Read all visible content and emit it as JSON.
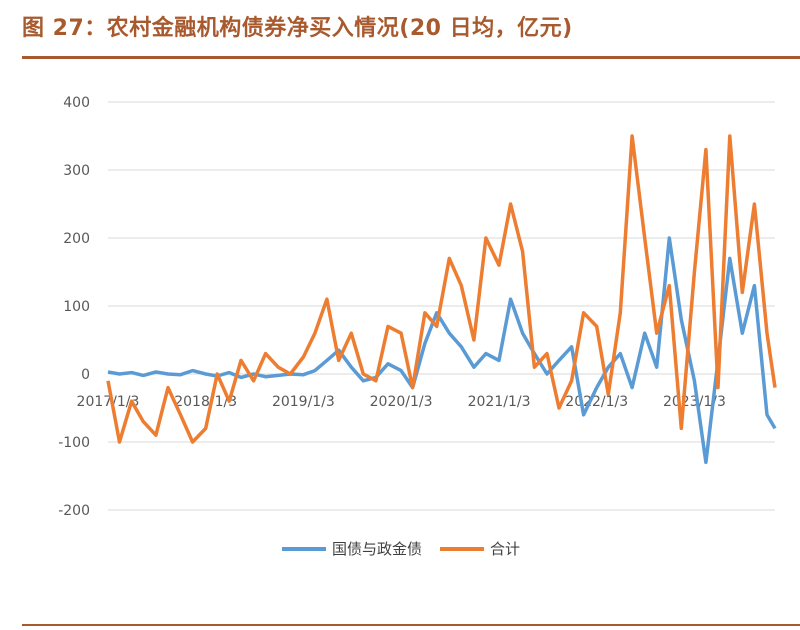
{
  "figure": {
    "title": "图 27：农村金融机构债券净买入情况(20 日均，亿元)"
  },
  "chart_data": {
    "type": "line",
    "title": "",
    "xlabel": "",
    "ylabel": "",
    "ylim": [
      -200,
      400
    ],
    "yticks": [
      "400",
      "300",
      "200",
      "100",
      "0",
      "-100",
      "-200"
    ],
    "xticks": [
      "2017/1/3",
      "2018/1/3",
      "2019/1/3",
      "2020/1/3",
      "2021/1/3",
      "2022/1/3",
      "2023/1/3"
    ],
    "xrange": [
      "2017/1/3",
      "2023/10/31"
    ],
    "grid": true,
    "legend_position": "bottom",
    "x": [
      "2017/1/3",
      "2017/2/15",
      "2017/4/1",
      "2017/5/15",
      "2017/7/1",
      "2017/8/15",
      "2017/10/1",
      "2017/11/15",
      "2018/1/3",
      "2018/2/15",
      "2018/4/1",
      "2018/5/15",
      "2018/7/1",
      "2018/8/15",
      "2018/10/1",
      "2018/11/15",
      "2019/1/3",
      "2019/2/15",
      "2019/4/1",
      "2019/5/15",
      "2019/7/1",
      "2019/8/15",
      "2019/10/1",
      "2019/11/15",
      "2020/1/3",
      "2020/2/15",
      "2020/4/1",
      "2020/5/15",
      "2020/7/1",
      "2020/8/15",
      "2020/10/1",
      "2020/11/15",
      "2021/1/3",
      "2021/2/15",
      "2021/4/1",
      "2021/5/15",
      "2021/7/1",
      "2021/8/15",
      "2021/10/1",
      "2021/11/15",
      "2022/1/3",
      "2022/2/15",
      "2022/4/1",
      "2022/5/15",
      "2022/7/1",
      "2022/8/15",
      "2022/10/1",
      "2022/11/15",
      "2023/1/3",
      "2023/2/15",
      "2023/4/1",
      "2023/5/15",
      "2023/7/1",
      "2023/8/15",
      "2023/10/1",
      "2023/10/31"
    ],
    "series": [
      {
        "name": "国债与政金债",
        "color": "#5b9bd5",
        "values": [
          3,
          0,
          2,
          -2,
          3,
          0,
          -1,
          5,
          0,
          -3,
          2,
          -5,
          0,
          -4,
          -2,
          0,
          -1,
          5,
          20,
          35,
          10,
          -10,
          -5,
          15,
          5,
          -20,
          45,
          90,
          60,
          40,
          10,
          30,
          20,
          110,
          60,
          30,
          0,
          20,
          40,
          -60,
          -20,
          10,
          30,
          -20,
          60,
          10,
          200,
          80,
          -10,
          -130,
          20,
          170,
          60,
          130,
          -60,
          -80
        ],
        "range_note": ""
      },
      {
        "name": "合计",
        "color": "#ed7d31",
        "values": [
          -10,
          -100,
          -40,
          -70,
          -90,
          -20,
          -60,
          -100,
          -80,
          0,
          -40,
          20,
          -10,
          30,
          10,
          0,
          25,
          60,
          110,
          20,
          60,
          0,
          -10,
          70,
          60,
          -20,
          90,
          70,
          170,
          130,
          50,
          200,
          160,
          250,
          180,
          10,
          30,
          -50,
          -10,
          90,
          70,
          -30,
          90,
          350,
          200,
          60,
          130,
          -80,
          150,
          330,
          -20,
          350,
          120,
          250,
          60,
          -20
        ],
        "range_note": ""
      }
    ]
  },
  "legend": {
    "items": [
      {
        "label": "国债与政金债",
        "color": "#5b9bd5"
      },
      {
        "label": "合计",
        "color": "#ed7d31"
      }
    ]
  }
}
